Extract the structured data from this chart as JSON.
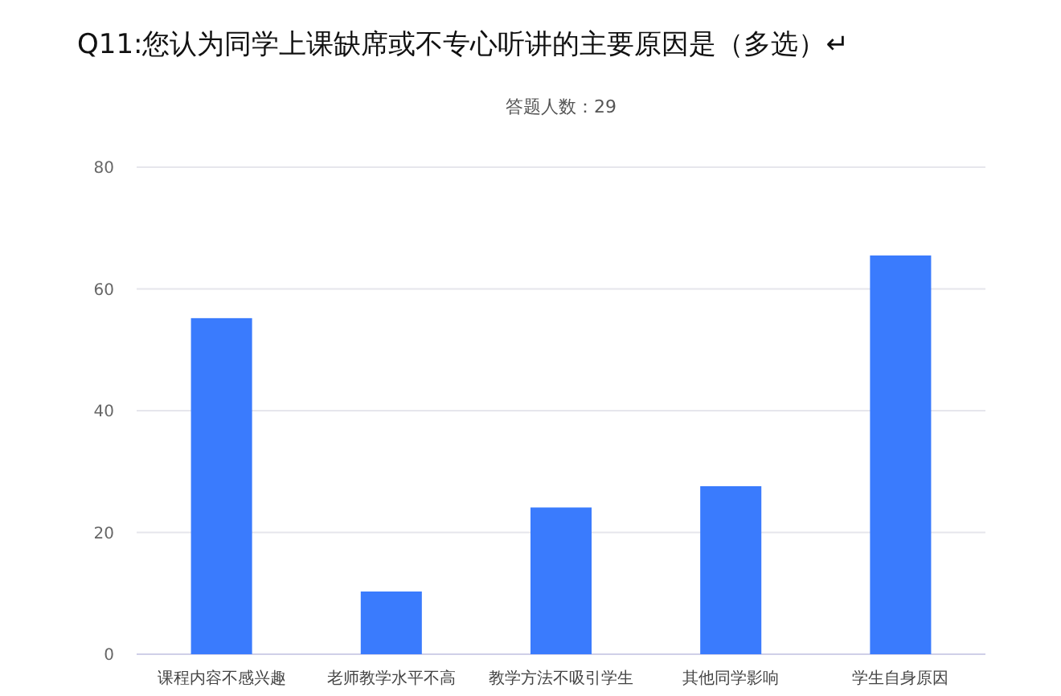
{
  "chart_data": {
    "type": "bar",
    "title": "Q11:您认为同学上课缺席或不专心听讲的主要原因是（多选）↵",
    "subtitle": "答题人数：29",
    "categories": [
      "课程内容不感兴趣",
      "老师教学水平不高",
      "教学方法不吸引学生",
      "其他同学影响",
      "学生自身原因"
    ],
    "values": [
      55.2,
      10.3,
      24.1,
      27.6,
      65.5
    ],
    "color": "#3a7bfd",
    "ylim": [
      0,
      80
    ],
    "yticks": [
      0,
      20,
      40,
      60,
      80
    ],
    "grid": "y"
  }
}
